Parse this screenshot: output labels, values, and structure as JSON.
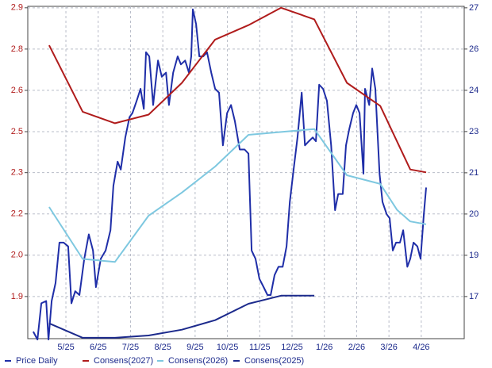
{
  "chart_data": {
    "type": "line",
    "xlim": [
      3.82,
      17.33
    ],
    "xticks": [
      {
        "value": 5,
        "label": "5/25"
      },
      {
        "value": 6,
        "label": "6/25"
      },
      {
        "value": 7,
        "label": "7/25"
      },
      {
        "value": 8,
        "label": "8/25"
      },
      {
        "value": 9,
        "label": "9/25"
      },
      {
        "value": 10,
        "label": "10/25"
      },
      {
        "value": 11,
        "label": "11/25"
      },
      {
        "value": 12,
        "label": "12/25"
      },
      {
        "value": 13,
        "label": "1/26"
      },
      {
        "value": 14,
        "label": "2/26"
      },
      {
        "value": 15,
        "label": "3/26"
      },
      {
        "value": 16,
        "label": "4/26"
      }
    ],
    "ylim": [
      1.754,
      2.905
    ],
    "yticks": [
      2.9,
      {
        "value": 2.757,
        "label": "2.8"
      },
      {
        "value": 2.614,
        "label": "2.6"
      },
      {
        "value": 2.471,
        "label": "2.5"
      },
      {
        "value": 2.329,
        "label": "2.3"
      },
      {
        "value": 2.186,
        "label": "2.2"
      },
      {
        "value": 2.043,
        "label": "2.0"
      },
      1.9
    ],
    "y2lim": [
      15.77,
      27.05
    ],
    "y2ticks": [
      27,
      {
        "value": 25.6,
        "label": "26"
      },
      {
        "value": 24.2,
        "label": "24"
      },
      {
        "value": 22.8,
        "label": "23"
      },
      {
        "value": 21.4,
        "label": "21"
      },
      20,
      {
        "value": 18.6,
        "label": "19"
      },
      {
        "value": 17.2,
        "label": "17"
      }
    ],
    "grid": true,
    "legend": "bottom",
    "series": [
      {
        "name": "Price Daily",
        "color": "#1f2ea8",
        "axis": "y2",
        "x": [
          3.99,
          4.12,
          4.24,
          4.39,
          4.46,
          4.56,
          4.68,
          4.8,
          4.93,
          5.07,
          5.17,
          5.29,
          5.42,
          5.57,
          5.71,
          5.84,
          5.93,
          6.08,
          6.23,
          6.38,
          6.47,
          6.6,
          6.7,
          6.84,
          6.97,
          7.06,
          7.19,
          7.31,
          7.41,
          7.48,
          7.58,
          7.7,
          7.85,
          7.97,
          8.1,
          8.19,
          8.32,
          8.46,
          8.56,
          8.69,
          8.81,
          8.88,
          8.93,
          9.03,
          9.13,
          9.25,
          9.37,
          9.5,
          9.62,
          9.74,
          9.86,
          9.99,
          10.11,
          10.23,
          10.38,
          10.53,
          10.65,
          10.75,
          10.87,
          10.99,
          11.12,
          11.24,
          11.34,
          11.46,
          11.58,
          11.71,
          11.83,
          11.93,
          12.05,
          12.17,
          12.3,
          12.4,
          12.52,
          12.64,
          12.74,
          12.84,
          12.96,
          13.08,
          13.21,
          13.33,
          13.43,
          13.57,
          13.67,
          13.77,
          13.89,
          13.99,
          14.09,
          14.21,
          14.26,
          14.39,
          14.48,
          14.58,
          14.71,
          14.8,
          14.93,
          15.02,
          15.12,
          15.22,
          15.34,
          15.44,
          15.57,
          15.66,
          15.76,
          15.88,
          15.98,
          16.08,
          16.15
        ],
        "values": [
          16.01,
          15.74,
          16.97,
          17.05,
          15.74,
          17.05,
          17.66,
          19.03,
          19.03,
          18.9,
          16.97,
          17.38,
          17.25,
          18.48,
          19.31,
          18.76,
          17.52,
          18.48,
          18.76,
          19.45,
          20.96,
          21.78,
          21.51,
          22.6,
          23.29,
          23.43,
          23.84,
          24.25,
          23.57,
          25.49,
          25.35,
          23.7,
          25.21,
          24.66,
          24.8,
          23.7,
          24.8,
          25.35,
          25.08,
          25.21,
          24.8,
          25.35,
          26.95,
          26.45,
          25.35,
          25.35,
          25.49,
          24.8,
          24.25,
          24.12,
          22.33,
          23.43,
          23.7,
          23.15,
          22.19,
          22.19,
          22.05,
          18.76,
          18.48,
          17.8,
          17.52,
          17.25,
          17.25,
          17.93,
          18.21,
          18.21,
          18.9,
          20.41,
          21.51,
          22.6,
          24.12,
          22.33,
          22.47,
          22.6,
          22.47,
          24.39,
          24.25,
          23.84,
          22.33,
          20.13,
          20.68,
          20.68,
          22.33,
          22.88,
          23.43,
          23.7,
          23.43,
          21.37,
          24.25,
          23.7,
          24.94,
          24.25,
          21.37,
          20.41,
          19.99,
          19.86,
          18.76,
          19.03,
          19.03,
          19.45,
          18.21,
          18.48,
          19.03,
          18.9,
          18.48,
          19.99,
          20.9
        ]
      },
      {
        "name": "Consens(2027)",
        "color": "#b01c1c",
        "x": [
          4.48,
          5.52,
          6.52,
          7.56,
          8.59,
          9.62,
          10.65,
          11.66,
          12.69,
          13.7,
          14.73,
          15.66,
          16.15
        ],
        "values": [
          2.77,
          2.54,
          2.5,
          2.53,
          2.64,
          2.79,
          2.84,
          2.9,
          2.86,
          2.64,
          2.56,
          2.34,
          2.33
        ]
      },
      {
        "name": "Consens(2026)",
        "color": "#7ec8e0",
        "x": [
          4.48,
          5.52,
          6.52,
          7.56,
          8.59,
          9.62,
          10.65,
          11.66,
          12.69,
          13.7,
          14.73,
          15.25,
          15.66,
          16.15
        ],
        "values": [
          2.21,
          2.03,
          2.02,
          2.18,
          2.26,
          2.35,
          2.46,
          2.47,
          2.48,
          2.32,
          2.29,
          2.2,
          2.16,
          2.15
        ]
      },
      {
        "name": "Consens(2025)",
        "color": "#1c2a8c",
        "x": [
          4.48,
          5.52,
          6.52,
          7.56,
          8.59,
          9.62,
          10.65,
          11.66,
          12.69
        ],
        "values": [
          1.807,
          1.757,
          1.757,
          1.765,
          1.785,
          1.818,
          1.875,
          1.903,
          1.903
        ]
      }
    ]
  }
}
